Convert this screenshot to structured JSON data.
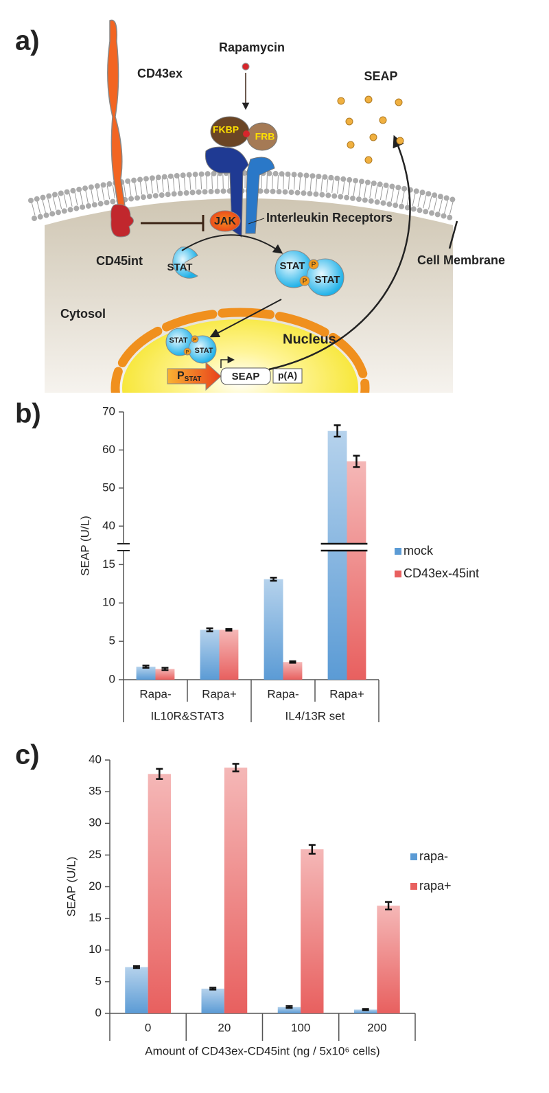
{
  "panels": [
    "a)",
    "b)",
    "c)"
  ],
  "diagram": {
    "rapamycin": "Rapamycin",
    "cd43ex": "CD43ex",
    "seap": "SEAP",
    "fkbp": "FKBP",
    "frb": "FRB",
    "jak": "JAK",
    "receptors": "Interleukin Receptors",
    "cd45int": "CD45int",
    "stat": "STAT",
    "p": "P",
    "cell_membrane": "Cell Membrane",
    "cytosol": "Cytosol",
    "nucleus": "Nucleus",
    "promoter": "P",
    "promoter_subscript": "STAT",
    "reporter": "SEAP",
    "polya": "p(A)"
  },
  "chart_data": [
    {
      "type": "bar",
      "ylabel": "SEAP (U/L)",
      "categories": [
        "Rapa-",
        "Rapa+",
        "Rapa-",
        "Rapa+"
      ],
      "group_labels": [
        "IL10R&STAT3",
        "IL4/13R set"
      ],
      "series": [
        {
          "name": "mock",
          "color": "#5b9bd5",
          "values": [
            1.7,
            6.5,
            13.1,
            65
          ],
          "errors": [
            0.15,
            0.2,
            0.2,
            1.5
          ]
        },
        {
          "name": "CD43ex-45int",
          "color": "#e8605f",
          "values": [
            1.4,
            6.5,
            2.3,
            57
          ],
          "errors": [
            0.15,
            0.1,
            0.1,
            1.5
          ]
        }
      ],
      "ylim": [
        0,
        70
      ],
      "yticks": [
        0,
        5,
        10,
        15,
        40,
        50,
        60,
        70
      ],
      "ybreak": [
        17,
        35
      ],
      "legend": "right"
    },
    {
      "type": "bar",
      "ylabel": "SEAP (U/L)",
      "xlabel": "Amount of CD43ex-CD45int (ng / 5x10⁶ cells)",
      "categories": [
        "0",
        "20",
        "100",
        "200"
      ],
      "series": [
        {
          "name": "rapa-",
          "color": "#5b9bd5",
          "values": [
            7.3,
            3.9,
            1.0,
            0.6
          ],
          "errors": [
            0.15,
            0.15,
            0.15,
            0.1
          ]
        },
        {
          "name": "rapa+",
          "color": "#e8605f",
          "values": [
            37.8,
            38.8,
            25.9,
            17.0
          ],
          "errors": [
            0.8,
            0.6,
            0.7,
            0.6
          ]
        }
      ],
      "ylim": [
        0,
        40
      ],
      "yticks": [
        0,
        5,
        10,
        15,
        20,
        25,
        30,
        35,
        40
      ],
      "legend": "right"
    }
  ]
}
